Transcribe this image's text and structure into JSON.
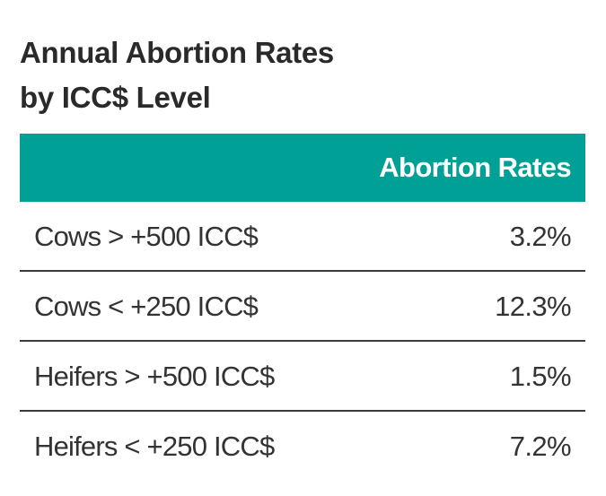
{
  "title": {
    "line1": "Annual Abortion Rates",
    "line2": "by ICC$ Level"
  },
  "table": {
    "header_color": "#00a096",
    "column_header": "Abortion Rates",
    "rows": [
      {
        "label": "Cows > +500 ICC$",
        "value": "3.2%"
      },
      {
        "label": "Cows < +250 ICC$",
        "value": "12.3%"
      },
      {
        "label": "Heifers > +500 ICC$",
        "value": "1.5%"
      },
      {
        "label": "Heifers < +250 ICC$",
        "value": "7.2%"
      }
    ]
  }
}
